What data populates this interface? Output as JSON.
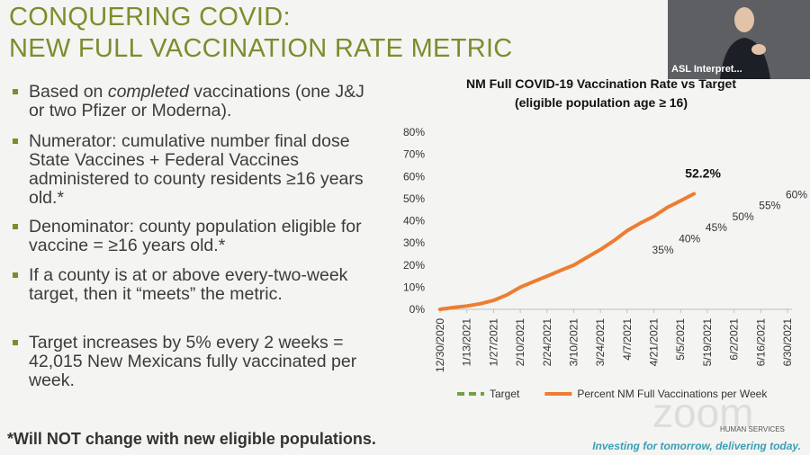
{
  "slide": {
    "title_lines": [
      "CONQUERING COVID:",
      "NEW FULL VACCINATION RATE METRIC"
    ],
    "bullets": [
      [
        "Based on ",
        "completed",
        " vaccinations (one J&J or two Pfizer or Moderna)."
      ],
      "Numerator: cumulative number final dose State Vaccines + Federal Vaccines administered to county residents ≥16 years old.*",
      "Denominator: county population eligible for vaccine = ≥16 years old.*",
      "If a county is at or above every-two-week target, then it “meets” the metric.",
      "Target increases by 5% every 2 weeks = 42,015 New Mexicans fully vaccinated per week."
    ],
    "footnote": "*Will NOT change with new eligible populations.",
    "video_label": "ASL Interpret...",
    "watermark": "zoom",
    "logo_text": "HUMAN SERVICES",
    "tagline": "Investing for tomorrow, delivering today."
  },
  "chart_data": {
    "type": "line",
    "title": "NM Full COVID-19 Vaccination Rate vs Target",
    "subtitle": "(eligible population age ≥ 16)",
    "categories": [
      "12/30/2020",
      null,
      "1/13/2021",
      null,
      "1/27/2021",
      null,
      "2/10/2021",
      null,
      "2/24/2021",
      null,
      "3/10/2021",
      null,
      "3/24/2021",
      null,
      "4/7/2021",
      null,
      "4/21/2021",
      null,
      "5/5/2021",
      null,
      "5/19/2021",
      null,
      "6/2/2021",
      null,
      "6/16/2021",
      null,
      "6/30/2021"
    ],
    "series": [
      {
        "name": "Target",
        "color": "#70a33c",
        "dashed": true,
        "values": [
          null,
          null,
          null,
          null,
          null,
          null,
          null,
          null,
          null,
          null,
          null,
          null,
          null,
          null,
          null,
          null,
          35,
          null,
          40,
          null,
          45,
          null,
          50,
          null,
          55,
          null,
          60
        ],
        "value_labels": [
          null,
          null,
          null,
          null,
          null,
          null,
          null,
          null,
          null,
          null,
          null,
          null,
          null,
          null,
          null,
          null,
          "35%",
          null,
          "40%",
          null,
          "45%",
          null,
          "50%",
          null,
          "55%",
          null,
          "60%"
        ]
      },
      {
        "name": "Percent NM Full Vaccinations per Week",
        "color": "#ed7d31",
        "dashed": false,
        "values": [
          0,
          0.8,
          1.5,
          2.5,
          4,
          6.5,
          10,
          12.5,
          15,
          17.5,
          20,
          23.5,
          27,
          31,
          35.5,
          39,
          42,
          46,
          49,
          52.2,
          null,
          null,
          null,
          null,
          null,
          null,
          null
        ],
        "value_labels": [
          null,
          null,
          null,
          null,
          null,
          null,
          null,
          null,
          null,
          null,
          null,
          null,
          null,
          null,
          null,
          null,
          null,
          null,
          null,
          "52.2%",
          null,
          null,
          null,
          null,
          null,
          null,
          null
        ]
      }
    ],
    "ylim": [
      0,
      80
    ],
    "yticks": [
      {
        "value": 0,
        "label": "0%"
      },
      {
        "value": 10,
        "label": "10%"
      },
      {
        "value": 20,
        "label": "20%"
      },
      {
        "value": 30,
        "label": "30%"
      },
      {
        "value": 40,
        "label": "40%"
      },
      {
        "value": 50,
        "label": "50%"
      },
      {
        "value": 60,
        "label": "60%"
      },
      {
        "value": 70,
        "label": "70%"
      },
      {
        "value": 80,
        "label": "80%"
      }
    ],
    "grid": false,
    "legend": "bottom"
  }
}
